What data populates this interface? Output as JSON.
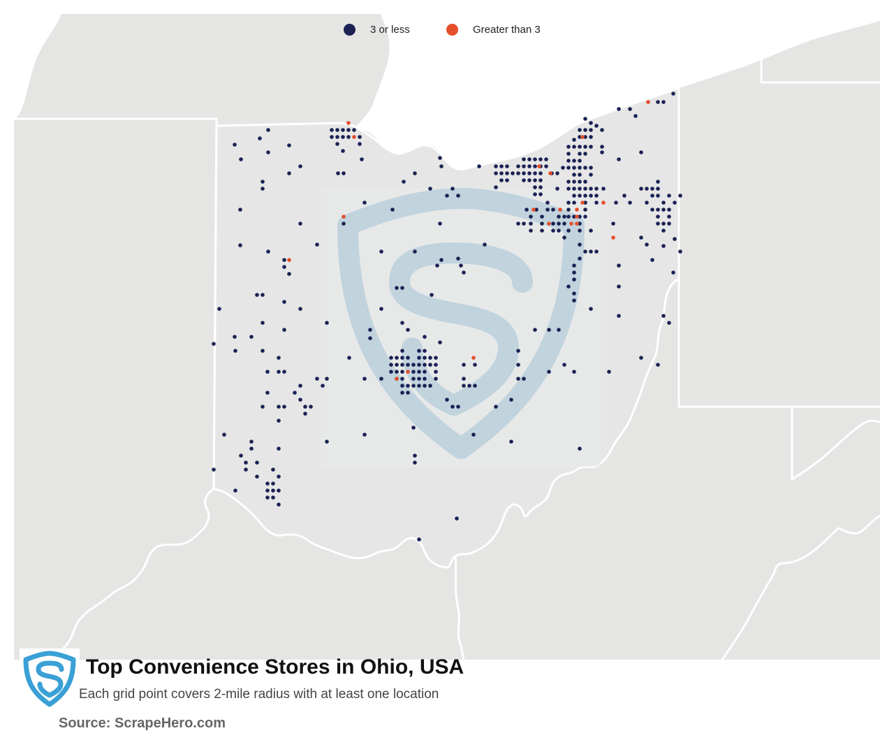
{
  "title": "Top Convenience Stores in Ohio, USA",
  "subtitle": "Each grid point covers 2-mile radius with at least one location",
  "source": "Source: ScrapeHero.com",
  "legend": [
    {
      "label": "3 or less",
      "color": "#1a2153"
    },
    {
      "label": "Greater than 3",
      "color": "#e54e2b"
    }
  ],
  "colors": {
    "land": "#e5e5e4",
    "ohio": "#e6e6e6",
    "lake": "#ffffff",
    "border": "#ffffff",
    "watermark": "#b7cedb",
    "logo": "#3aa0d6"
  },
  "icons": {
    "watermark": "scrapehero-shield-watermark",
    "logo": "scrapehero-shield-logo"
  }
}
